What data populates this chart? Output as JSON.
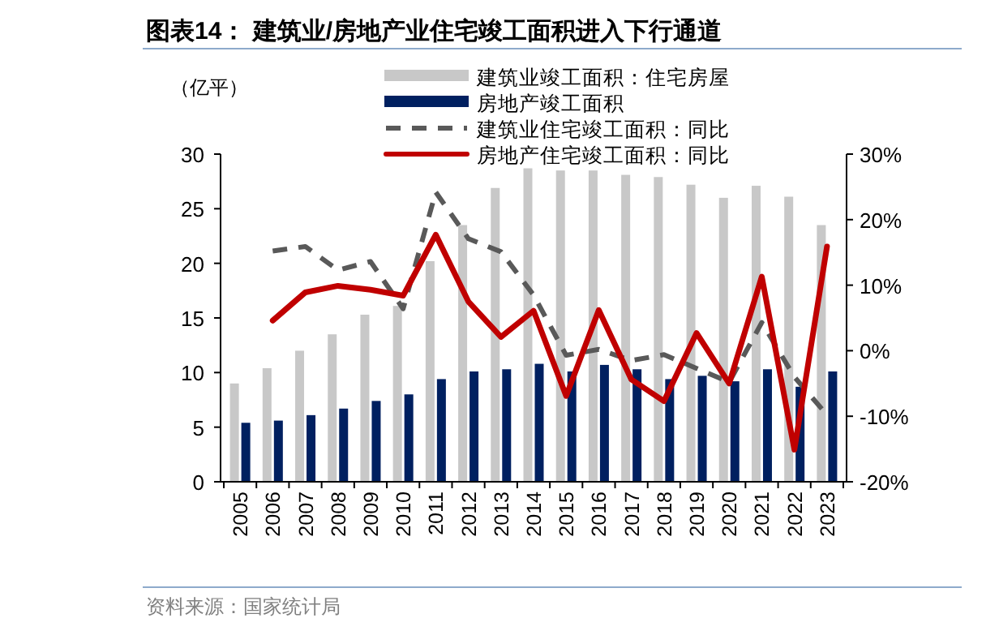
{
  "chart_data": {
    "type": "bar",
    "title": "图表14：  建筑业/房地产业住宅竣工面积进入下行通道",
    "ylabel": "（亿平）",
    "categories": [
      "2005",
      "2006",
      "2007",
      "2008",
      "2009",
      "2010",
      "2011",
      "2012",
      "2013",
      "2014",
      "2015",
      "2016",
      "2017",
      "2018",
      "2019",
      "2020",
      "2021",
      "2022",
      "2023"
    ],
    "series": [
      {
        "name": "建筑业竣工面积：住宅房屋",
        "color": "#c8c8c8",
        "values": [
          9.0,
          10.4,
          12.0,
          13.5,
          15.3,
          16.1,
          20.2,
          23.5,
          26.9,
          28.7,
          28.5,
          28.5,
          28.1,
          27.9,
          27.2,
          26.0,
          27.1,
          26.1,
          23.5
        ]
      },
      {
        "name": "房地产竣工面积",
        "color": "#002060",
        "values": [
          5.4,
          5.6,
          6.1,
          6.7,
          7.4,
          8.0,
          9.4,
          10.1,
          10.3,
          10.8,
          10.1,
          10.7,
          10.3,
          9.4,
          9.7,
          9.2,
          10.3,
          8.7,
          10.1
        ]
      },
      {
        "name": "建筑业住宅竣工面积：同比",
        "type": "line",
        "axis": "y2",
        "line_style": "dashed",
        "color": "#595959",
        "values": [
          null,
          15.2,
          15.9,
          12.3,
          13.6,
          6.4,
          24.2,
          17.1,
          15.1,
          8.5,
          -0.7,
          0.2,
          -1.5,
          -0.6,
          -2.7,
          -4.8,
          4.3,
          -4.0,
          -9.8
        ]
      },
      {
        "name": "房地产住宅竣工面积：同比",
        "type": "line",
        "axis": "y2",
        "line_style": "solid",
        "color": "#c00000",
        "values": [
          null,
          4.6,
          8.9,
          9.9,
          9.3,
          8.4,
          17.7,
          7.5,
          2.1,
          6.1,
          -6.9,
          6.2,
          -4.4,
          -7.7,
          2.7,
          -5.0,
          11.3,
          -15.1,
          15.9
        ]
      }
    ],
    "ylim": [
      0,
      30
    ],
    "yticks": [
      0,
      5,
      10,
      15,
      20,
      25,
      30
    ],
    "y2lim": [
      -20,
      30
    ],
    "y2ticks": [
      {
        "value": -20,
        "label": "-20%"
      },
      {
        "value": -10,
        "label": "-10%"
      },
      {
        "value": 0,
        "label": "0%"
      },
      {
        "value": 10,
        "label": "10%"
      },
      {
        "value": 20,
        "label": "20%"
      },
      {
        "value": 30,
        "label": "30%"
      }
    ],
    "legend": "top",
    "grid": false,
    "annotations": [
      "资料来源：国家统计局"
    ]
  }
}
